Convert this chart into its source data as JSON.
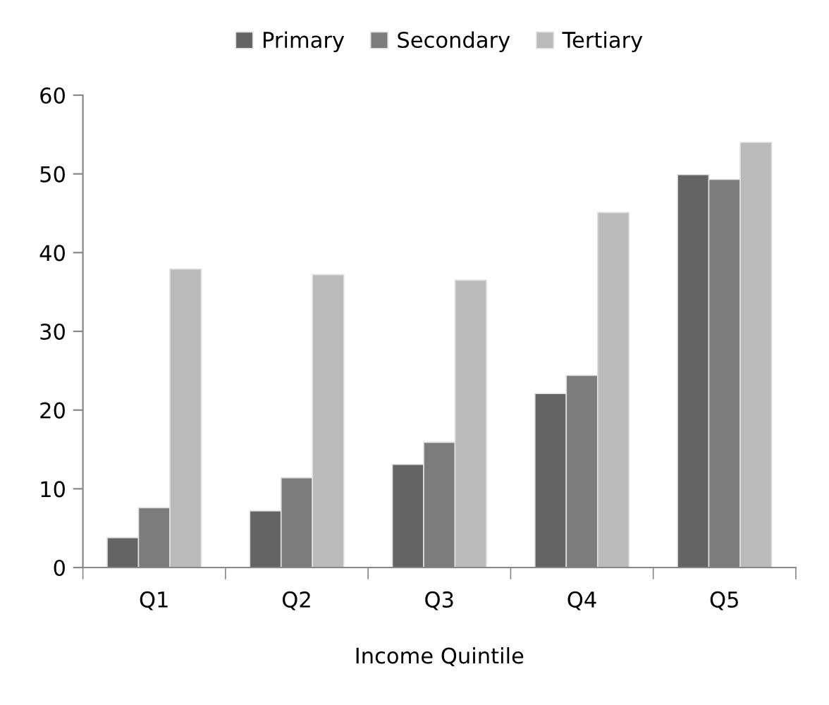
{
  "chart_data": {
    "type": "bar",
    "xlabel": "Income Quintile",
    "categories": [
      "Q1",
      "Q2",
      "Q3",
      "Q4",
      "Q5"
    ],
    "series": [
      {
        "name": "Primary",
        "color": "#646464",
        "values": [
          3.8,
          7.2,
          13.1,
          22.1,
          49.9
        ]
      },
      {
        "name": "Secondary",
        "color": "#7c7c7c",
        "values": [
          7.6,
          11.4,
          15.9,
          24.4,
          49.3
        ]
      },
      {
        "name": "Tertiary",
        "color": "#bababa",
        "values": [
          37.9,
          37.2,
          36.5,
          45.1,
          54.0
        ]
      }
    ],
    "ylim": [
      0,
      60
    ],
    "yticks": [
      0,
      10,
      20,
      30,
      40,
      50,
      60
    ],
    "grid": false,
    "legend": "top"
  }
}
